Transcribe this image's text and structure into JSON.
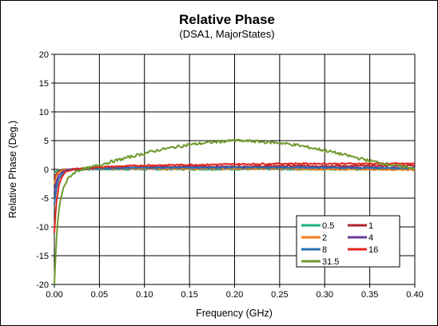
{
  "chart_data": {
    "type": "line",
    "title": "Relative Phase",
    "subtitle": "(DSA1, MajorStates)",
    "xlabel": "Frequency (GHz)",
    "ylabel": "Relative Phase (Deg.)",
    "xlim": [
      0,
      0.4
    ],
    "ylim": [
      -20,
      20
    ],
    "x_ticks": [
      "0.00",
      "0.05",
      "0.10",
      "0.15",
      "0.20",
      "0.25",
      "0.30",
      "0.35",
      "0.40"
    ],
    "y_ticks": [
      "20",
      "15",
      "10",
      "5",
      "0",
      "-5",
      "-10",
      "-15",
      "-20"
    ],
    "grid": true,
    "legend_position": "bottom-right",
    "series": [
      {
        "name": "0.5",
        "color": "#1fb07a",
        "x": [
          0,
          0.002,
          0.005,
          0.01,
          0.02,
          0.05,
          0.1,
          0.15,
          0.2,
          0.25,
          0.3,
          0.35,
          0.4
        ],
        "y": [
          -0.6,
          -0.3,
          -0.1,
          0,
          0,
          0,
          0,
          0,
          0,
          0,
          0,
          0,
          0
        ]
      },
      {
        "name": "1",
        "color": "#b0232a",
        "x": [
          0,
          0.002,
          0.005,
          0.01,
          0.02,
          0.05,
          0.1,
          0.15,
          0.2,
          0.25,
          0.3,
          0.35,
          0.4
        ],
        "y": [
          -1.5,
          -0.8,
          -0.3,
          0,
          0.1,
          0.3,
          0.4,
          0.5,
          0.5,
          0.6,
          0.6,
          0.6,
          0.7
        ]
      },
      {
        "name": "2",
        "color": "#f07d1e",
        "x": [
          0,
          0.002,
          0.005,
          0.01,
          0.02,
          0.05,
          0.1,
          0.15,
          0.2,
          0.25,
          0.3,
          0.35,
          0.4
        ],
        "y": [
          -2.5,
          -1.2,
          -0.5,
          -0.1,
          0,
          0.1,
          0.1,
          0.1,
          0.1,
          0.1,
          0,
          0,
          -0.1
        ]
      },
      {
        "name": "4",
        "color": "#6a3d9a",
        "x": [
          0,
          0.002,
          0.005,
          0.01,
          0.02,
          0.05,
          0.1,
          0.15,
          0.2,
          0.25,
          0.3,
          0.35,
          0.4
        ],
        "y": [
          -4,
          -2.2,
          -1,
          -0.3,
          0,
          0.2,
          0.3,
          0.4,
          0.4,
          0.4,
          0.4,
          0.3,
          0.3
        ]
      },
      {
        "name": "8",
        "color": "#2a6fb0",
        "x": [
          0,
          0.002,
          0.005,
          0.01,
          0.015,
          0.02,
          0.05,
          0.1,
          0.15,
          0.2,
          0.25,
          0.3,
          0.35,
          0.4
        ],
        "y": [
          -6,
          -3.5,
          -1.6,
          -0.6,
          -0.2,
          0,
          0.2,
          0.3,
          0.3,
          0.3,
          0.3,
          0.3,
          0.2,
          0.2
        ]
      },
      {
        "name": "16",
        "color": "#e3241b",
        "x": [
          0,
          0.002,
          0.005,
          0.008,
          0.012,
          0.02,
          0.05,
          0.1,
          0.15,
          0.2,
          0.25,
          0.3,
          0.35,
          0.4
        ],
        "y": [
          -11,
          -6,
          -2.8,
          -1.4,
          -0.5,
          0,
          0.4,
          0.7,
          0.8,
          0.9,
          1,
          1,
          1,
          1
        ]
      },
      {
        "name": "31.5",
        "color": "#6f9a2e",
        "x": [
          0,
          0.002,
          0.004,
          0.006,
          0.008,
          0.01,
          0.015,
          0.02,
          0.025,
          0.03,
          0.04,
          0.05,
          0.06,
          0.08,
          0.1,
          0.12,
          0.15,
          0.18,
          0.2,
          0.22,
          0.25,
          0.27,
          0.3,
          0.32,
          0.35,
          0.37,
          0.38,
          0.4
        ],
        "y": [
          -20,
          -13,
          -8.5,
          -6,
          -4.5,
          -3.2,
          -1.7,
          -0.8,
          -0.3,
          0,
          0.3,
          0.8,
          1.2,
          2,
          2.8,
          3.5,
          4.3,
          4.8,
          5,
          4.9,
          4.6,
          4.2,
          3.3,
          2.6,
          1.5,
          0.9,
          0.6,
          0.2
        ]
      }
    ]
  }
}
